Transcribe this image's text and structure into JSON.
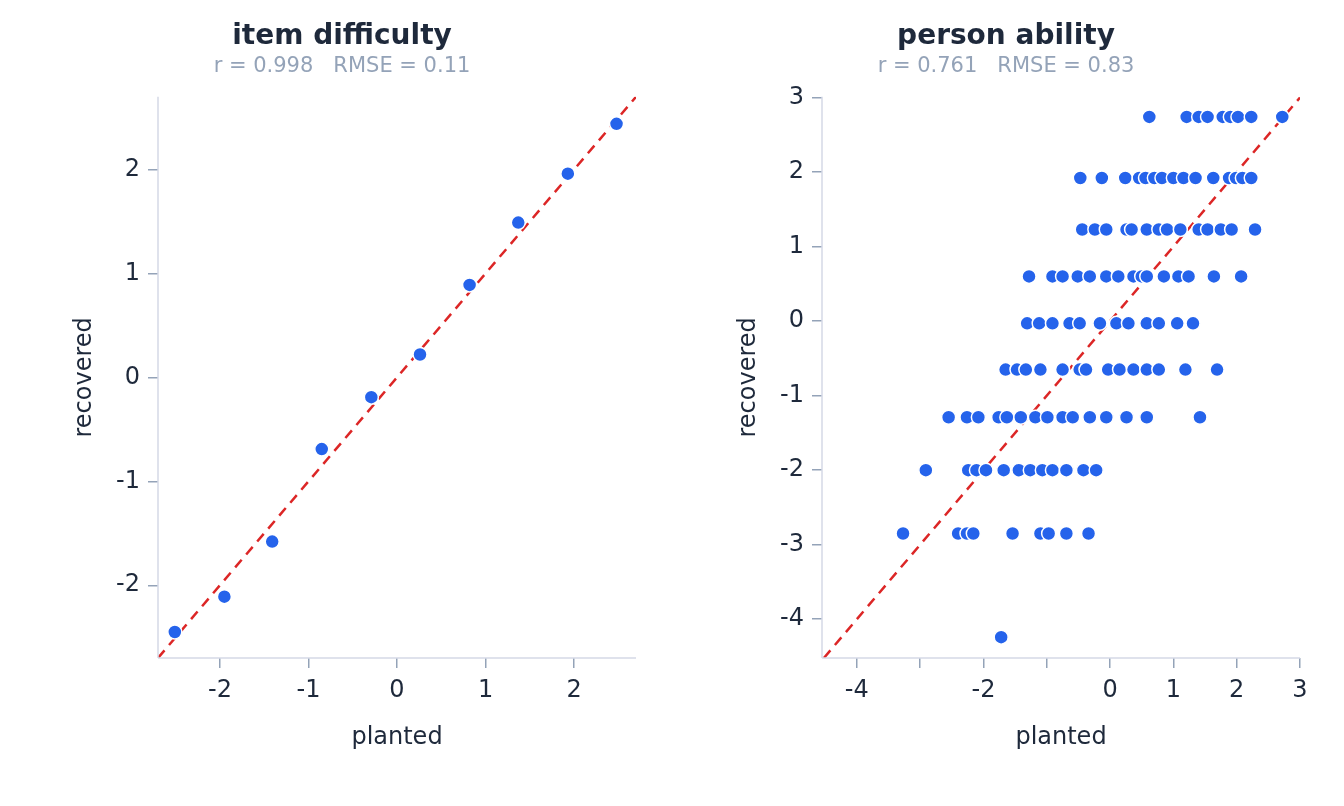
{
  "chart_data": [
    {
      "type": "scatter",
      "title": "item difficulty",
      "subtitle": "r = 0.998   RMSE = 0.11",
      "xlabel": "planted",
      "ylabel": "recovered",
      "xlim": [
        -2.7,
        2.7
      ],
      "ylim": [
        -2.7,
        2.7
      ],
      "xticks": [
        -2,
        -1,
        0,
        1,
        2
      ],
      "yticks": [
        -2,
        -1,
        0,
        1,
        2
      ],
      "grid": false,
      "legend": false,
      "marker": "circle",
      "series": [
        {
          "type": "scatter",
          "color": "#2563eb",
          "x": [
            -2.51,
            -1.95,
            -1.41,
            -0.85,
            -0.29,
            0.26,
            0.82,
            1.37,
            1.93,
            2.48
          ],
          "values": [
            -2.45,
            -2.11,
            -1.58,
            -0.69,
            -0.19,
            0.22,
            0.89,
            1.49,
            1.96,
            2.44
          ]
        },
        {
          "type": "line",
          "color": "#dc2626",
          "line_style": "dashed",
          "marker": "none",
          "x": [
            -2.7,
            2.7
          ],
          "values": [
            -2.7,
            2.7
          ]
        }
      ]
    },
    {
      "type": "scatter",
      "title": "person ability",
      "subtitle": "r = 0.761   RMSE = 0.83",
      "xlabel": "planted",
      "ylabel": "recovered",
      "xlim": [
        -4.55,
        3.0
      ],
      "ylim": [
        -4.52,
        3.01
      ],
      "xticks": [
        -4,
        {
          "value": -3,
          "label": null
        },
        -2,
        {
          "value": -1,
          "label": null
        },
        0,
        1,
        2,
        3
      ],
      "yticks": [
        -4,
        -3,
        -2,
        -1,
        0,
        1,
        2,
        3
      ],
      "grid": false,
      "legend": false,
      "marker": "circle",
      "series": [
        {
          "type": "scatter",
          "color": "#2563eb",
          "x": [
            0.62,
            1.21,
            1.4,
            1.54,
            1.78,
            1.9,
            2.02,
            2.23,
            2.72,
            -0.47,
            -0.13,
            0.24,
            0.46,
            0.56,
            0.7,
            0.82,
            1.0,
            1.16,
            1.35,
            1.63,
            1.88,
            1.99,
            2.09,
            2.23,
            -0.44,
            -0.24,
            -0.06,
            0.26,
            0.34,
            0.58,
            0.77,
            0.9,
            1.11,
            1.4,
            1.54,
            1.75,
            1.92,
            2.29,
            -1.28,
            -0.91,
            -0.75,
            -0.51,
            -0.32,
            -0.06,
            0.13,
            0.37,
            0.5,
            0.58,
            0.85,
            1.08,
            1.24,
            1.64,
            2.07,
            -1.31,
            -1.12,
            -0.91,
            -0.64,
            -0.48,
            -0.16,
            0.1,
            0.29,
            0.58,
            0.77,
            1.06,
            1.31,
            -1.65,
            -1.47,
            -1.33,
            -1.1,
            -0.75,
            -0.48,
            -0.38,
            -0.03,
            0.15,
            0.37,
            0.58,
            0.77,
            1.19,
            1.69,
            -2.55,
            -2.26,
            -2.08,
            -1.76,
            -1.63,
            -1.41,
            -1.18,
            -0.99,
            -0.75,
            -0.59,
            -0.32,
            -0.06,
            0.26,
            0.58,
            1.42,
            -2.91,
            -2.24,
            -2.11,
            -1.96,
            -1.68,
            -1.44,
            -1.26,
            -1.07,
            -0.91,
            -0.69,
            -0.42,
            -0.22,
            -3.27,
            -2.4,
            -2.26,
            -2.16,
            -1.54,
            -1.1,
            -0.97,
            -0.69,
            -0.34,
            -1.72
          ],
          "values": [
            2.74,
            2.74,
            2.74,
            2.74,
            2.74,
            2.74,
            2.74,
            2.74,
            2.74,
            1.92,
            1.92,
            1.92,
            1.92,
            1.92,
            1.92,
            1.92,
            1.92,
            1.92,
            1.92,
            1.92,
            1.92,
            1.92,
            1.92,
            1.92,
            1.23,
            1.23,
            1.23,
            1.23,
            1.23,
            1.23,
            1.23,
            1.23,
            1.23,
            1.23,
            1.23,
            1.23,
            1.23,
            1.23,
            0.6,
            0.6,
            0.6,
            0.6,
            0.6,
            0.6,
            0.6,
            0.6,
            0.6,
            0.6,
            0.6,
            0.6,
            0.6,
            0.6,
            0.6,
            -0.03,
            -0.03,
            -0.03,
            -0.03,
            -0.03,
            -0.03,
            -0.03,
            -0.03,
            -0.03,
            -0.03,
            -0.03,
            -0.03,
            -0.65,
            -0.65,
            -0.65,
            -0.65,
            -0.65,
            -0.65,
            -0.65,
            -0.65,
            -0.65,
            -0.65,
            -0.65,
            -0.65,
            -0.65,
            -0.65,
            -1.29,
            -1.29,
            -1.29,
            -1.29,
            -1.29,
            -1.29,
            -1.29,
            -1.29,
            -1.29,
            -1.29,
            -1.29,
            -1.29,
            -1.29,
            -1.29,
            -1.29,
            -2.0,
            -2.0,
            -2.0,
            -2.0,
            -2.0,
            -2.0,
            -2.0,
            -2.0,
            -2.0,
            -2.0,
            -2.0,
            -2.0,
            -2.85,
            -2.85,
            -2.85,
            -2.85,
            -2.85,
            -2.85,
            -2.85,
            -2.85,
            -2.85,
            -4.24
          ]
        },
        {
          "type": "line",
          "color": "#dc2626",
          "line_style": "dashed",
          "marker": "none",
          "x": [
            -4.52,
            3.0
          ],
          "values": [
            -4.52,
            3.0
          ]
        }
      ]
    }
  ]
}
